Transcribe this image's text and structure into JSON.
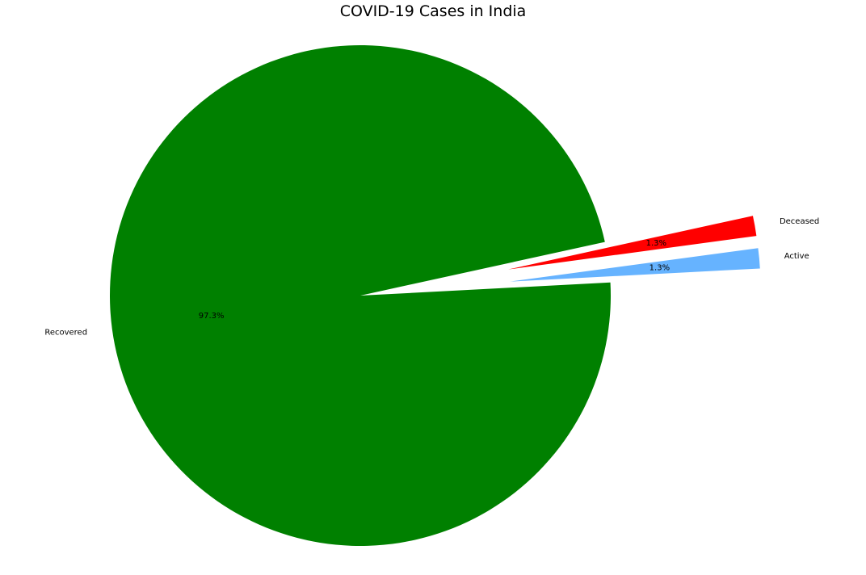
{
  "chart_data": {
    "type": "pie",
    "title": "COVID-19 Cases in India",
    "start_angle_deg": 3,
    "counterclockwise": true,
    "slices": [
      {
        "label": "Active",
        "percent": 1.3,
        "percent_label": "1.3%",
        "color": "#66b3ff",
        "exploded": true
      },
      {
        "label": "Deceased",
        "percent": 1.3,
        "percent_label": "1.3%",
        "color": "#ff0000",
        "exploded": true
      },
      {
        "label": "Recovered",
        "percent": 97.3,
        "percent_label": "97.3%",
        "color": "#008000",
        "exploded": false
      }
    ]
  }
}
